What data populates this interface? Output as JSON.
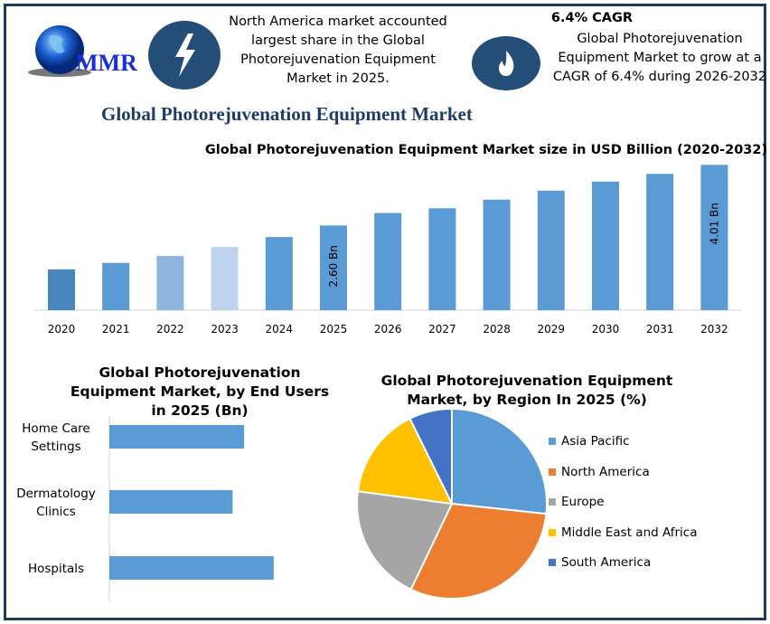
{
  "logo": {
    "text": "MMR"
  },
  "highlights": [
    {
      "icon": "lightning-icon",
      "text": "North America market accounted largest share in the Global Photorejuvenation Equipment Market in 2025."
    },
    {
      "icon": "flame-icon",
      "heading": "6.4% CAGR",
      "text": "Global Photorejuvenation Equipment Market to grow at a CAGR of 6.4% during 2026-2032"
    }
  ],
  "main_title": "Global Photorejuvenation Equipment Market",
  "colors": {
    "bar": "#5b9bd5",
    "frame": "#1f3b5c",
    "icon_circle": "#244e77"
  },
  "chart_data": [
    {
      "type": "bar",
      "title": "Global Photorejuvenation Equipment Market size in USD Billion (2020-2032)",
      "categories": [
        "2020",
        "2021",
        "2022",
        "2023",
        "2024",
        "2025",
        "2026",
        "2027",
        "2028",
        "2029",
        "2030",
        "2031",
        "2032"
      ],
      "values": [
        1.58,
        1.73,
        1.89,
        2.1,
        2.33,
        2.6,
        2.89,
        3.0,
        3.2,
        3.41,
        3.62,
        3.8,
        4.01
      ],
      "colors": [
        "#4a86be",
        "#5b9bd5",
        "#8fb4e0",
        "#bdd3ee",
        "#5b9bd5",
        "#5b9bd5",
        "#5b9bd5",
        "#5b9bd5",
        "#5b9bd5",
        "#5b9bd5",
        "#5b9bd5",
        "#5b9bd5",
        "#5b9bd5"
      ],
      "data_labels": {
        "2025": "2.60 Bn",
        "2032": "4.01 Bn"
      },
      "ylim": [
        0.63,
        4.1
      ],
      "grid": false
    },
    {
      "type": "bar",
      "orientation": "horizontal",
      "title": "Global Photorejuvenation Equipment Market, by End Users in 2025 (Bn)",
      "categories": [
        "Home Care Settings",
        "Dermatology Clinics",
        "Hospitals"
      ],
      "values": [
        0.82,
        0.75,
        1.0
      ],
      "xlim": [
        0,
        1.1
      ],
      "grid": false
    },
    {
      "type": "pie",
      "title": "Global Photorejuvenation Equipment Market, by Region In 2025 (%)",
      "labels": [
        "Asia Pacific",
        "North America",
        "Europe",
        "Middle East and Africa",
        "South America"
      ],
      "values": [
        26.7,
        30.4,
        20.0,
        15.6,
        7.3
      ],
      "colors": [
        "#5b9bd5",
        "#ed7d31",
        "#a5a5a5",
        "#ffc000",
        "#4472c4"
      ],
      "legend": "right"
    }
  ]
}
